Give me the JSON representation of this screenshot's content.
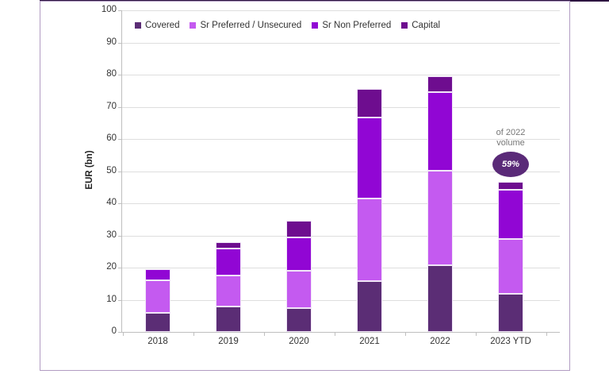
{
  "page": {
    "top_bar_color": "#2c1240",
    "panel_border_color": "#b19cc2",
    "background": "#ffffff"
  },
  "chart_data": {
    "type": "stacked-bar",
    "title": "",
    "xlabel": "",
    "ylabel": "EUR (bn)",
    "ylim": [
      0,
      100
    ],
    "ytick_step": 10,
    "grid": true,
    "legend_position": "top",
    "categories": [
      "2018",
      "2019",
      "2020",
      "2021",
      "2022",
      "2023 YTD"
    ],
    "series": [
      {
        "name": "Covered",
        "color": "#5b2d75",
        "values": [
          6.0,
          7.8,
          7.5,
          15.8,
          20.7,
          11.8
        ]
      },
      {
        "name": "Sr Preferred / Unsecured",
        "color": "#c45af0",
        "values": [
          10.0,
          9.7,
          11.5,
          25.8,
          29.4,
          17.2
        ]
      },
      {
        "name": "Sr Non Preferred",
        "color": "#9106d4",
        "values": [
          3.5,
          8.5,
          10.5,
          25.0,
          24.5,
          15.3
        ]
      },
      {
        "name": "Capital",
        "color": "#6e0d8f",
        "values": [
          0.0,
          2.0,
          5.0,
          9.0,
          5.0,
          2.3
        ]
      }
    ],
    "totals": [
      19.5,
      28.0,
      34.5,
      75.6,
      79.6,
      46.6
    ],
    "annotation": {
      "line1": "of 2022",
      "line2": "volume",
      "badge_text": "59%",
      "badge_color": "#5a2a78",
      "text_color": "#767676",
      "target_category": "2023 YTD"
    }
  }
}
